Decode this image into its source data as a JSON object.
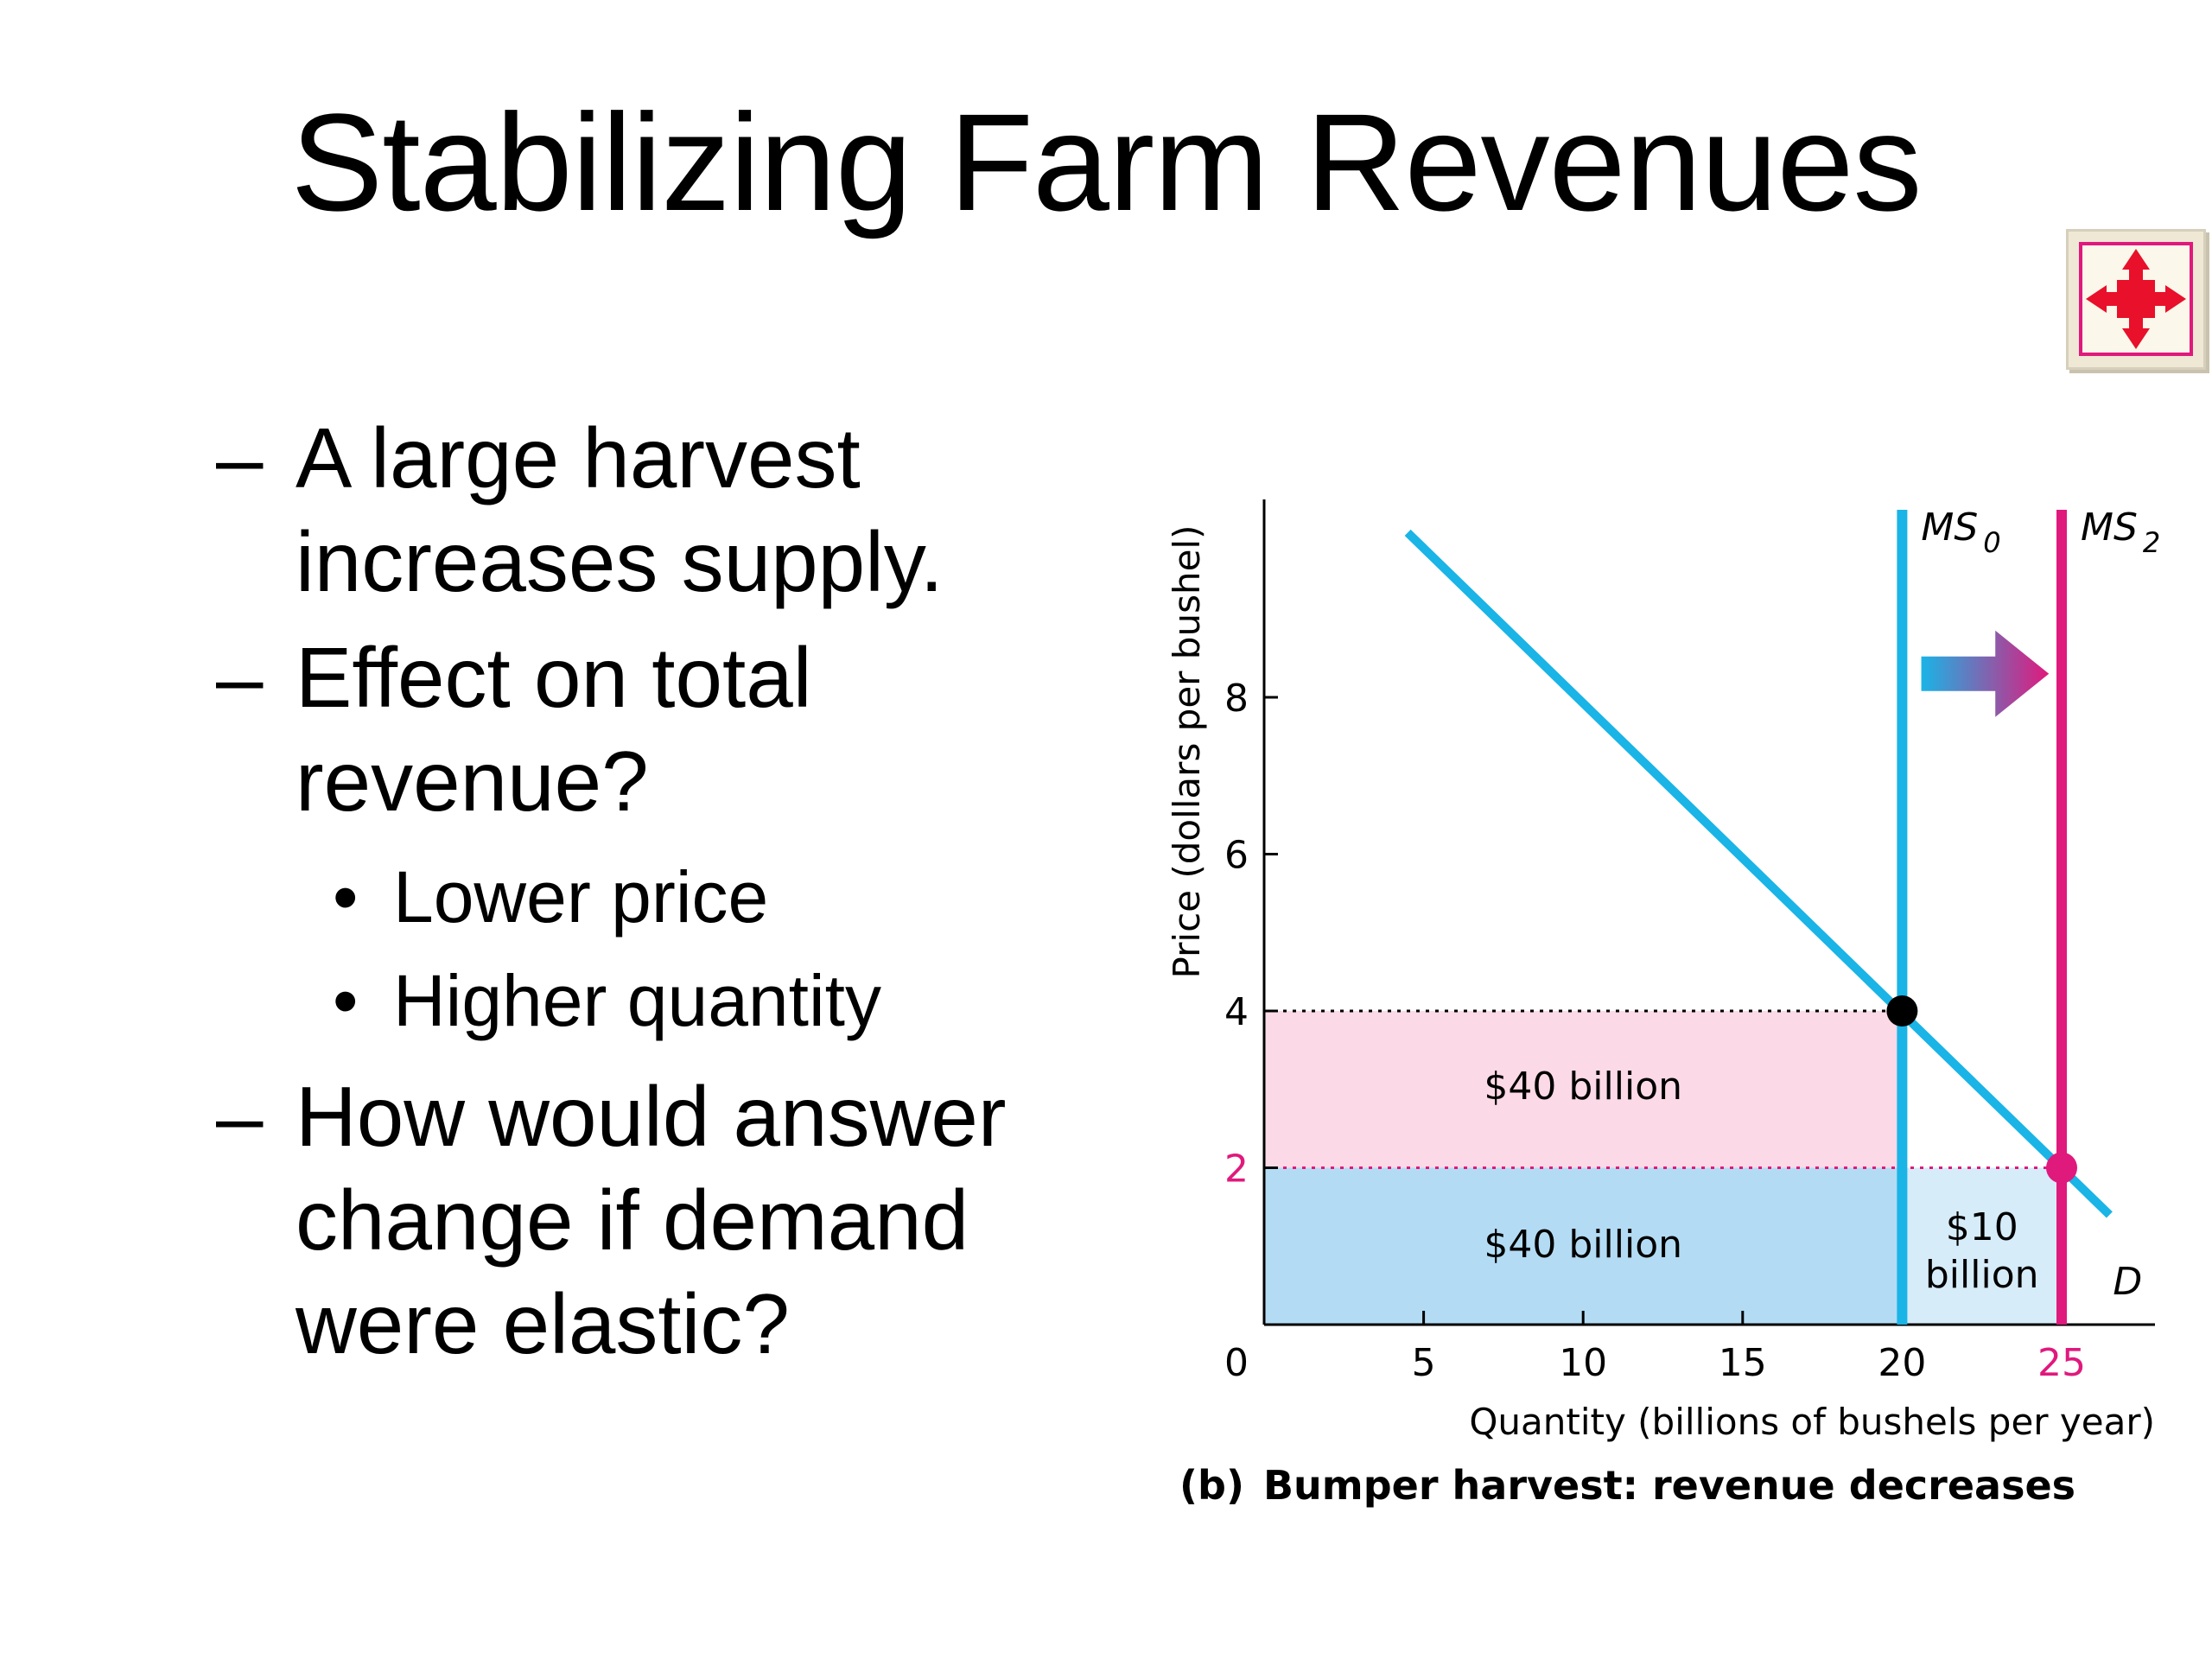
{
  "slide": {
    "title": "Stabilizing Farm Revenues",
    "bullets": [
      {
        "dash": "–",
        "text": "A large harvest increases supply."
      },
      {
        "dash": "–",
        "text": "Effect on total revenue?",
        "sub": [
          {
            "dot": "•",
            "text": "Lower price"
          },
          {
            "dot": "•",
            "text": "Higher quantity"
          }
        ]
      },
      {
        "dash": "–",
        "text": "How would answer change if demand were elastic?"
      }
    ],
    "nav_icon": "expand-arrows-icon"
  },
  "chart_data": {
    "type": "line",
    "caption_prefix": "(b)",
    "caption": "Bumper harvest: revenue decreases",
    "xlabel": "Quantity (billions of bushels per year)",
    "ylabel": "Price (dollars per bushel)",
    "xlim": [
      0,
      28
    ],
    "ylim": [
      0,
      10.2
    ],
    "x_ticks": [
      0,
      5,
      10,
      15,
      20,
      25
    ],
    "x_tick_labels": [
      "0",
      "5",
      "10",
      "15",
      "20",
      "25"
    ],
    "y_ticks": [
      2,
      4,
      6,
      8
    ],
    "y_tick_labels": [
      "2",
      "4",
      "6",
      "8"
    ],
    "highlight_x_tick": 25,
    "highlight_y_tick": 2,
    "grid": false,
    "colors": {
      "blue": "#1ab4e6",
      "magenta": "#e0197d",
      "pink_area": "#fbd9e6",
      "blue_area": "#b3dcf4",
      "light_blue_area": "#d6ecf9"
    },
    "series": [
      {
        "name": "D",
        "kind": "demand",
        "points": [
          [
            4.5,
            10.1
          ],
          [
            26.5,
            1.4
          ]
        ],
        "color": "#1ab4e6"
      },
      {
        "name": "MS",
        "subscript": "0",
        "kind": "vertical",
        "x": 20,
        "color": "#1ab4e6"
      },
      {
        "name": "MS",
        "subscript": "2",
        "kind": "vertical",
        "x": 25,
        "color": "#e0197d"
      }
    ],
    "equilibria": [
      {
        "x": 20,
        "y": 4,
        "color": "#000000"
      },
      {
        "x": 25,
        "y": 2,
        "color": "#e0197d"
      }
    ],
    "areas": [
      {
        "x0": 0,
        "x1": 20,
        "y0": 2,
        "y1": 4,
        "label": "$40 billion",
        "color": "#fbd9e6"
      },
      {
        "x0": 0,
        "x1": 20,
        "y0": 0,
        "y1": 2,
        "label": "$40 billion",
        "color": "#b3dcf4"
      },
      {
        "x0": 20,
        "x1": 25,
        "y0": 0,
        "y1": 2,
        "label": "$10 billion",
        "color": "#d6ecf9"
      }
    ],
    "shift_arrow": {
      "from": 20.6,
      "to": 24.6,
      "y": 8.3
    }
  }
}
